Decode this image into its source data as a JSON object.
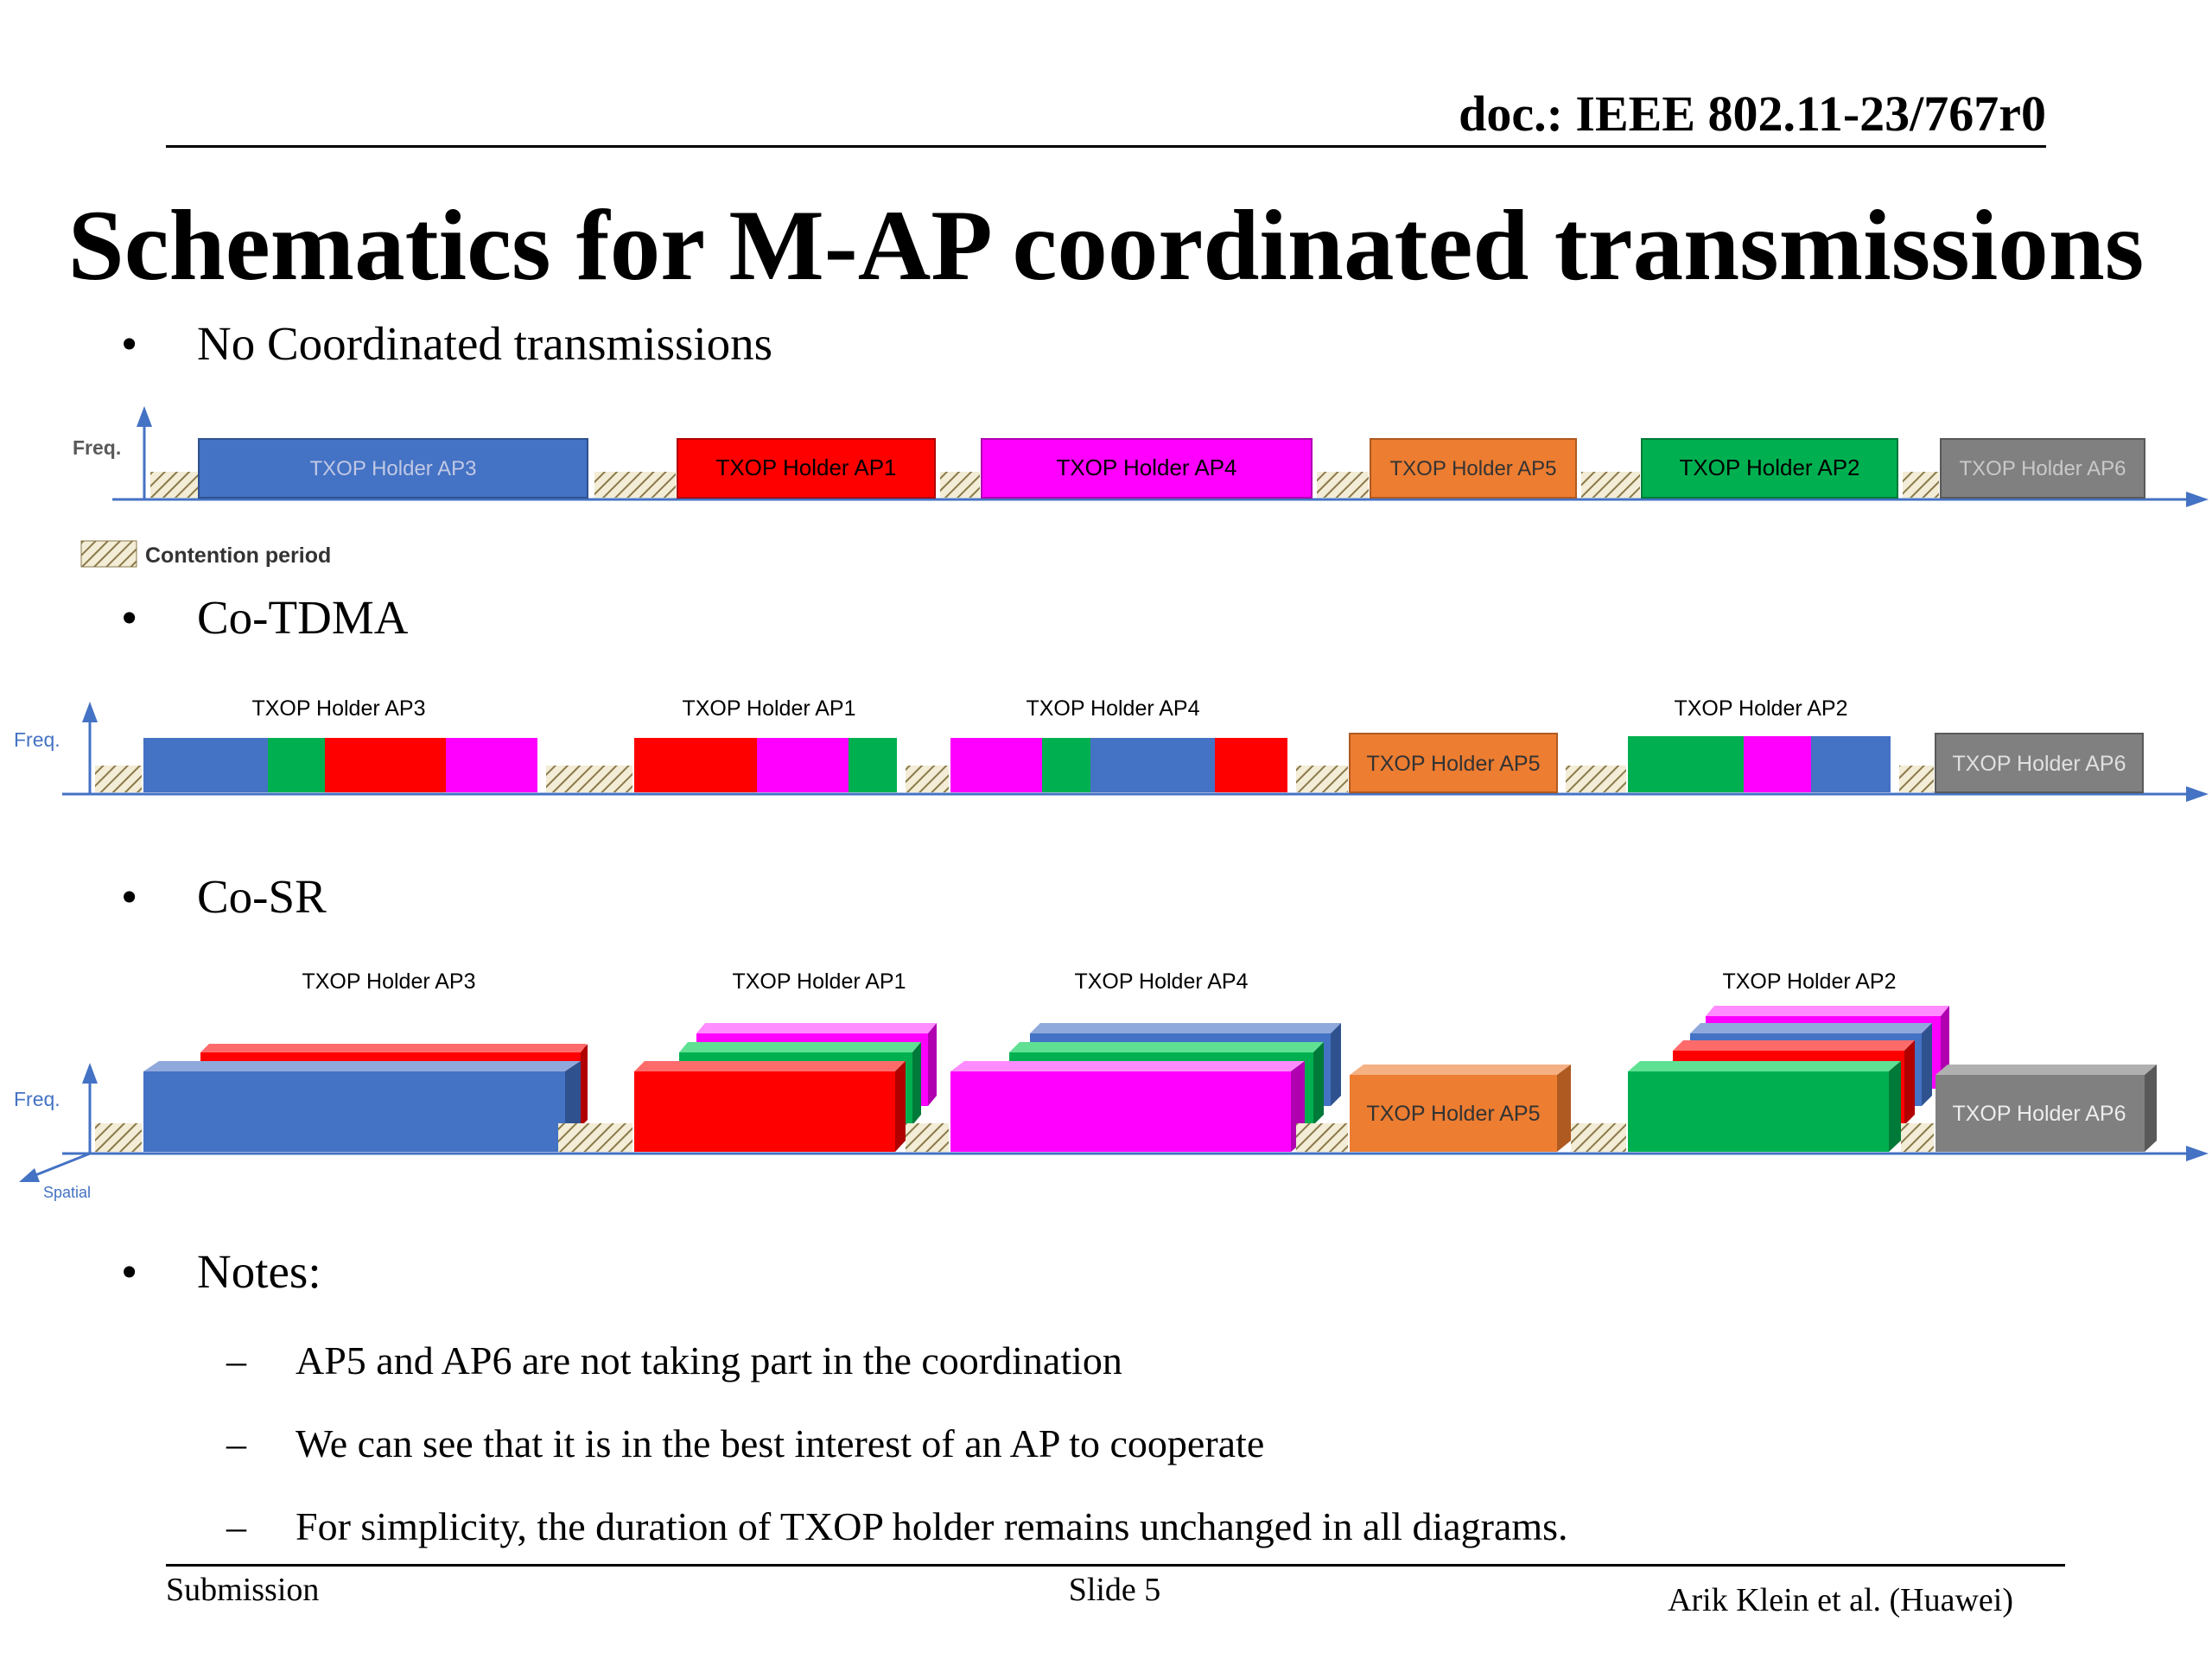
{
  "header": {
    "doc_id": "doc.: IEEE 802.11-23/767r0"
  },
  "slide": {
    "title": "Schematics for M-AP coordinated transmissions",
    "bullets": {
      "no_coord": "No Coordinated transmissions",
      "co_tdma": "Co-TDMA",
      "co_sr": "Co-SR",
      "notes": "Notes:"
    },
    "notes": [
      "AP5 and AP6 are not taking part in the coordination",
      "We can see that it is in the best interest of an AP to cooperate",
      "For simplicity, the duration of TXOP holder remains unchanged in all diagrams."
    ]
  },
  "diagram": {
    "freq_label": "Freq.",
    "spatial_label": "Spatial",
    "legend_label": "Contention period",
    "labels": {
      "ap1": "TXOP Holder AP1",
      "ap2": "TXOP Holder AP2",
      "ap3": "TXOP Holder AP3",
      "ap4": "TXOP Holder AP4",
      "ap5": "TXOP Holder AP5",
      "ap6": "TXOP Holder AP6"
    },
    "colors": {
      "ap1": "#ff0000",
      "ap2": "#00b050",
      "ap3": "#4472c4",
      "ap4": "#ff00ff",
      "ap5": "#ed7d31",
      "ap6": "#808080",
      "axis": "#4472c4",
      "hatch": "#c9b98a"
    }
  },
  "footer": {
    "left": "Submission",
    "center": "Slide 5",
    "right": "Arik Klein et al. (Huawei)"
  }
}
